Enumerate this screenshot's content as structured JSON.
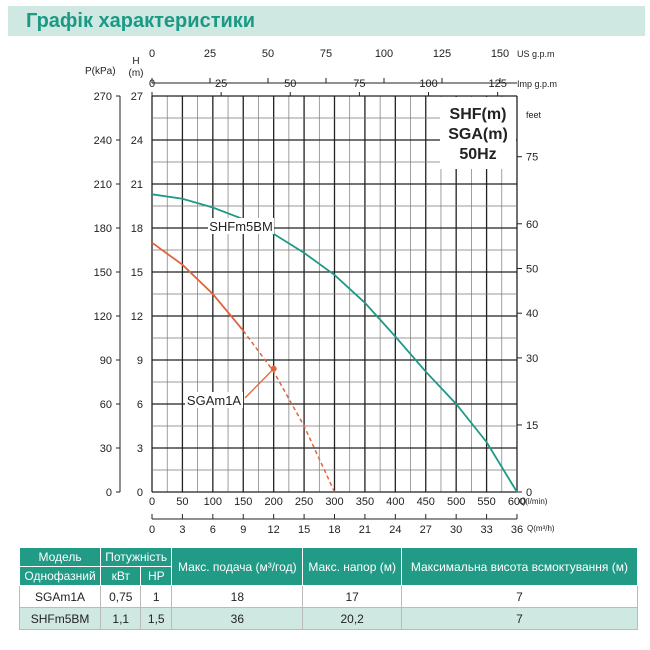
{
  "header": {
    "title": "Графік характеристики"
  },
  "chart_data": {
    "type": "line",
    "legend_box": [
      "SHF(m)",
      "SGA(m)",
      "50Hz"
    ],
    "axes": {
      "x_bottom": {
        "label": "Q(l/min)",
        "ticks": [
          0,
          50,
          100,
          150,
          200,
          250,
          300,
          350,
          400,
          450,
          500,
          550,
          600
        ],
        "range": [
          0,
          600
        ]
      },
      "x_bottom2": {
        "label": "Q(m³/h)",
        "ticks": [
          0,
          3,
          6,
          9,
          12,
          15,
          18,
          21,
          24,
          27,
          30,
          33,
          36
        ]
      },
      "x_top1": {
        "label": "US g.p.m",
        "ticks": [
          0,
          25,
          50,
          75,
          100,
          125,
          150
        ]
      },
      "x_top2": {
        "label": "Imp g.p.m",
        "ticks": [
          0,
          25,
          50,
          75,
          100,
          125
        ]
      },
      "y_left_m": {
        "label": "H (m)",
        "ticks": [
          0,
          3,
          6,
          9,
          12,
          15,
          18,
          21,
          24,
          27
        ],
        "range": [
          0,
          27
        ]
      },
      "y_left_kpa": {
        "label": "P(kPa)",
        "ticks": [
          0,
          30,
          60,
          90,
          120,
          150,
          180,
          210,
          240,
          270
        ]
      },
      "y_right": {
        "label": "feet",
        "ticks": [
          0,
          15,
          30,
          40,
          50,
          60,
          75
        ]
      }
    },
    "grid": true,
    "series": [
      {
        "name": "SHFm5BM",
        "color": "#1f9a86",
        "x": [
          0,
          50,
          100,
          150,
          200,
          250,
          300,
          350,
          400,
          450,
          500,
          550,
          600
        ],
        "y": [
          20.3,
          20.0,
          19.4,
          18.6,
          17.6,
          16.3,
          14.8,
          12.9,
          10.6,
          8.2,
          6.0,
          3.4,
          0
        ]
      },
      {
        "name": "SGAm1A",
        "color": "#e0643a",
        "x": [
          0,
          50,
          100,
          150
        ],
        "y": [
          17,
          15.5,
          13.5,
          11.0
        ],
        "dashed_x": [
          150,
          200,
          250,
          300
        ],
        "dashed_y": [
          11.0,
          8.2,
          4.5,
          0
        ]
      }
    ]
  },
  "table": {
    "headers": {
      "model": "Модель",
      "power": "Потужність",
      "flow": "Макс. подача (м³/год)",
      "head": "Макс. напор (м)",
      "suction": "Максимальна висота всмоктування (м)",
      "phase": "Однофазний",
      "kw": "кВт",
      "hp": "HP"
    },
    "rows": [
      {
        "model": "SGAm1A",
        "kw": "0,75",
        "hp": "1",
        "flow": "18",
        "head": "17",
        "suction": "7"
      },
      {
        "model": "SHFm5BM",
        "kw": "1,1",
        "hp": "1,5",
        "flow": "36",
        "head": "20,2",
        "suction": "7"
      }
    ]
  }
}
